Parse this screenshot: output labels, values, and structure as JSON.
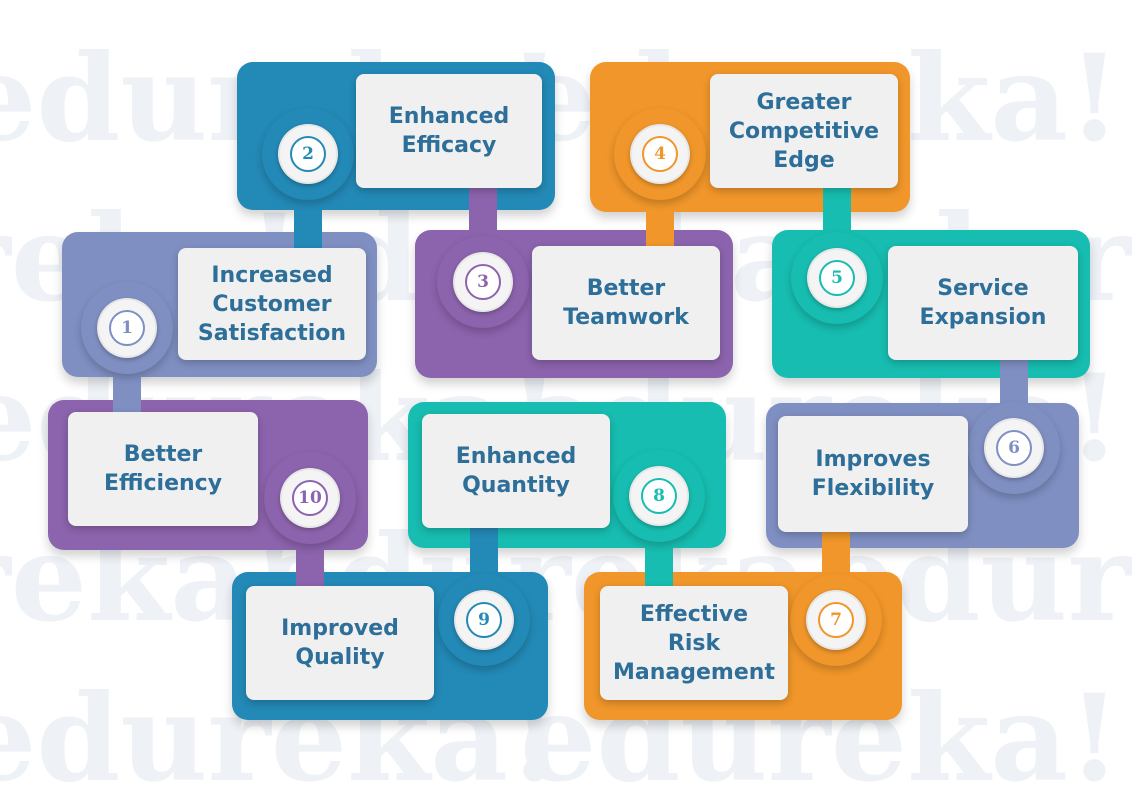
{
  "colors": {
    "blue": "#2389b6",
    "orange": "#f0962a",
    "purple": "#8c63ad",
    "lavender": "#7f8fc2",
    "teal": "#17bdb0",
    "box": "#f0f0f0",
    "text": "#2e6f9a"
  },
  "watermark": {
    "text": "edureka!",
    "color": "#eef2f6"
  },
  "items": [
    {
      "number": "1",
      "label": "Increased\nCustomer\nSatisfaction",
      "color_key": "lavender"
    },
    {
      "number": "2",
      "label": "Enhanced\nEfficacy",
      "color_key": "blue"
    },
    {
      "number": "3",
      "label": "Better\nTeamwork",
      "color_key": "purple"
    },
    {
      "number": "4",
      "label": "Greater\nCompetitive\nEdge",
      "color_key": "orange"
    },
    {
      "number": "5",
      "label": "Service\nExpansion",
      "color_key": "teal"
    },
    {
      "number": "6",
      "label": "Improves\nFlexibility",
      "color_key": "lavender"
    },
    {
      "number": "7",
      "label": "Effective\nRisk\nManagement",
      "color_key": "orange"
    },
    {
      "number": "8",
      "label": "Enhanced\nQuantity",
      "color_key": "teal"
    },
    {
      "number": "9",
      "label": "Improved\nQuality",
      "color_key": "blue"
    },
    {
      "number": "10",
      "label": "Better\nEfficiency",
      "color_key": "purple"
    }
  ]
}
